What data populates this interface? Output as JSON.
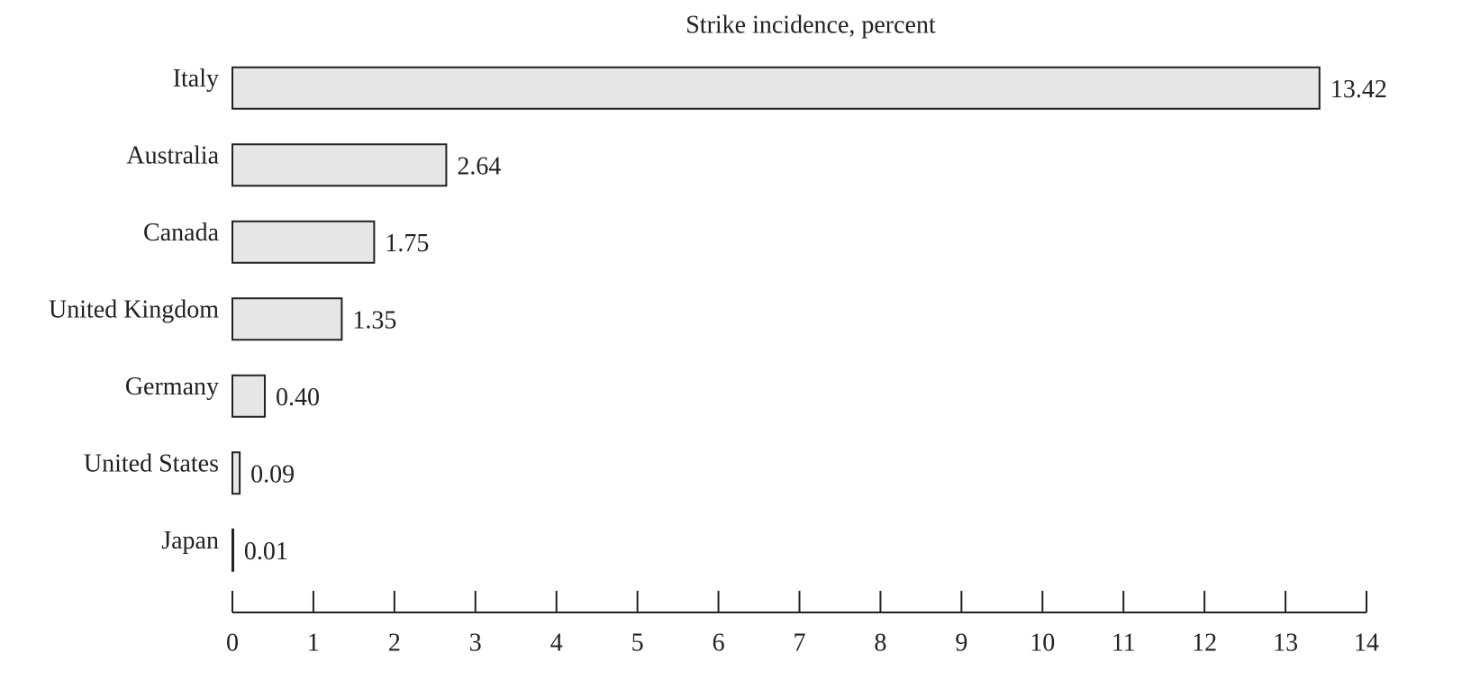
{
  "chart_data": {
    "type": "bar",
    "orientation": "horizontal",
    "title": "Strike incidence, percent",
    "categories": [
      "Italy",
      "Australia",
      "Canada",
      "United Kingdom",
      "Germany",
      "United States",
      "Japan"
    ],
    "values": [
      13.42,
      2.64,
      1.75,
      1.35,
      0.4,
      0.09,
      0.01
    ],
    "value_labels": [
      "13.42",
      "2.64",
      "1.75",
      "1.35",
      "0.40",
      "0.09",
      "0.01"
    ],
    "color": "#e6e6e6",
    "xlim": [
      0,
      14
    ],
    "xticks": [
      0,
      1,
      2,
      3,
      4,
      5,
      6,
      7,
      8,
      9,
      10,
      11,
      12,
      13,
      14
    ],
    "grid": false
  }
}
